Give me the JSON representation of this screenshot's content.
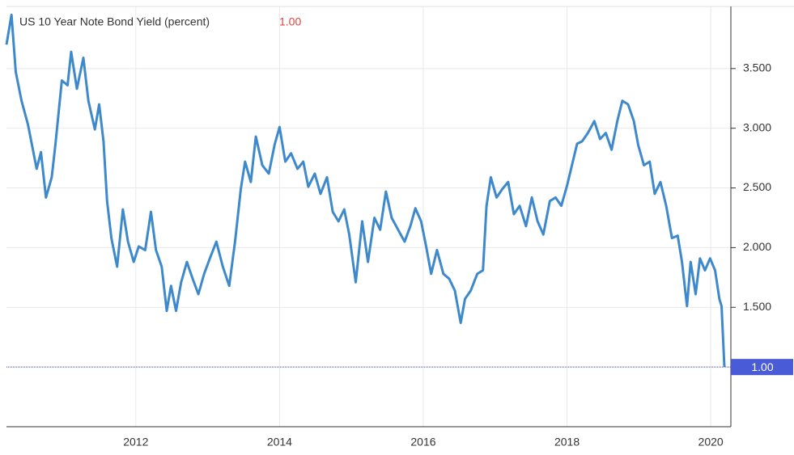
{
  "chart_data": {
    "type": "line",
    "title": "US 10 Year Note Bond Yield (percent)",
    "last_value": 1.0,
    "last_value_label": "1.00",
    "xlim": [
      2010.2,
      2020.28
    ],
    "ylim": [
      0.5,
      4.02
    ],
    "xticks": [
      2012,
      2014,
      2016,
      2018,
      2020
    ],
    "yticks": [
      {
        "value": 1.5,
        "label": "1.500"
      },
      {
        "value": 2.0,
        "label": "2.000"
      },
      {
        "value": 2.5,
        "label": "2.500"
      },
      {
        "value": 3.0,
        "label": "3.000"
      },
      {
        "value": 3.5,
        "label": "3.500"
      }
    ],
    "grid": true,
    "x": [
      2010.2,
      2010.27,
      2010.33,
      2010.41,
      2010.5,
      2010.62,
      2010.68,
      2010.75,
      2010.83,
      2010.88,
      2010.97,
      2011.05,
      2011.1,
      2011.18,
      2011.27,
      2011.34,
      2011.43,
      2011.49,
      2011.55,
      2011.6,
      2011.66,
      2011.74,
      2011.82,
      2011.89,
      2011.97,
      2012.04,
      2012.13,
      2012.21,
      2012.28,
      2012.36,
      2012.43,
      2012.49,
      2012.56,
      2012.63,
      2012.71,
      2012.79,
      2012.87,
      2012.95,
      2013.03,
      2013.12,
      2013.21,
      2013.3,
      2013.38,
      2013.46,
      2013.52,
      2013.6,
      2013.67,
      2013.76,
      2013.85,
      2013.93,
      2014.0,
      2014.08,
      2014.16,
      2014.25,
      2014.33,
      2014.4,
      2014.49,
      2014.57,
      2014.66,
      2014.74,
      2014.82,
      2014.9,
      2014.97,
      2015.06,
      2015.15,
      2015.23,
      2015.32,
      2015.4,
      2015.48,
      2015.56,
      2015.65,
      2015.74,
      2015.82,
      2015.89,
      2015.97,
      2016.04,
      2016.11,
      2016.19,
      2016.28,
      2016.36,
      2016.44,
      2016.52,
      2016.58,
      2016.66,
      2016.75,
      2016.83,
      2016.88,
      2016.94,
      2017.02,
      2017.1,
      2017.18,
      2017.26,
      2017.34,
      2017.43,
      2017.51,
      2017.59,
      2017.67,
      2017.76,
      2017.84,
      2017.92,
      2018.0,
      2018.08,
      2018.14,
      2018.21,
      2018.29,
      2018.38,
      2018.46,
      2018.54,
      2018.62,
      2018.7,
      2018.77,
      2018.85,
      2018.93,
      2018.99,
      2019.07,
      2019.15,
      2019.22,
      2019.3,
      2019.38,
      2019.46,
      2019.54,
      2019.6,
      2019.67,
      2019.72,
      2019.79,
      2019.85,
      2019.92,
      2019.99,
      2020.06,
      2020.12,
      2020.15,
      2020.19
    ],
    "series": [
      {
        "name": "US 10 Year Note Bond Yield",
        "color": "#3d89cc",
        "values": [
          3.7,
          3.95,
          3.47,
          3.23,
          3.03,
          2.66,
          2.8,
          2.42,
          2.59,
          2.86,
          3.4,
          3.36,
          3.64,
          3.33,
          3.59,
          3.23,
          2.99,
          3.2,
          2.89,
          2.39,
          2.08,
          1.84,
          2.32,
          2.05,
          1.88,
          2.01,
          1.98,
          2.3,
          1.98,
          1.84,
          1.47,
          1.68,
          1.47,
          1.71,
          1.88,
          1.74,
          1.61,
          1.78,
          1.91,
          2.05,
          1.84,
          1.68,
          2.05,
          2.49,
          2.72,
          2.55,
          2.93,
          2.69,
          2.62,
          2.86,
          3.01,
          2.72,
          2.79,
          2.66,
          2.72,
          2.51,
          2.62,
          2.45,
          2.59,
          2.3,
          2.22,
          2.32,
          2.11,
          1.71,
          2.22,
          1.88,
          2.25,
          2.15,
          2.47,
          2.25,
          2.15,
          2.05,
          2.18,
          2.33,
          2.22,
          2.01,
          1.78,
          1.98,
          1.78,
          1.74,
          1.64,
          1.37,
          1.57,
          1.64,
          1.78,
          1.81,
          2.35,
          2.59,
          2.42,
          2.49,
          2.55,
          2.28,
          2.35,
          2.18,
          2.42,
          2.22,
          2.11,
          2.39,
          2.42,
          2.35,
          2.52,
          2.72,
          2.87,
          2.89,
          2.96,
          3.06,
          2.91,
          2.96,
          2.82,
          3.06,
          3.23,
          3.2,
          3.06,
          2.86,
          2.69,
          2.72,
          2.45,
          2.55,
          2.35,
          2.08,
          2.1,
          1.88,
          1.51,
          1.88,
          1.61,
          1.91,
          1.81,
          1.91,
          1.81,
          1.57,
          1.51,
          1.0
        ]
      }
    ]
  }
}
